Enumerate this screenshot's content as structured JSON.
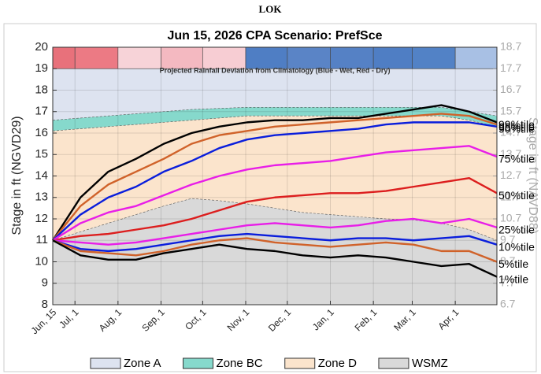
{
  "header": {
    "title": "LOK"
  },
  "chart_data": {
    "type": "line",
    "title": "Jun 15, 2026  CPA Scenario: PrefSce",
    "ylabel": "Stage in ft (NGVD29)",
    "y2label": "Stage in ft (NAVD88)",
    "xlim": [
      0,
      320
    ],
    "xticks": [
      {
        "value": 0,
        "label": "Jun, 15"
      },
      {
        "value": 16,
        "label": "Jul, 1"
      },
      {
        "value": 47,
        "label": "Aug, 1"
      },
      {
        "value": 78,
        "label": "Sep, 1"
      },
      {
        "value": 108,
        "label": "Oct, 1"
      },
      {
        "value": 139,
        "label": "Nov, 1"
      },
      {
        "value": 169,
        "label": "Dec, 1"
      },
      {
        "value": 200,
        "label": "Jan, 1"
      },
      {
        "value": 231,
        "label": "Feb, 1"
      },
      {
        "value": 259,
        "label": "Mar, 1"
      },
      {
        "value": 290,
        "label": "Apr, 1"
      }
    ],
    "ylim": [
      8,
      20
    ],
    "yticks": [
      8,
      9,
      10,
      11,
      12,
      13,
      14,
      15,
      16,
      17,
      18,
      19,
      20
    ],
    "y2lim": [
      6.7,
      18.7
    ],
    "y2ticks": [
      6.7,
      7.7,
      8.7,
      9.7,
      10.7,
      11.7,
      12.7,
      13.7,
      14.7,
      15.7,
      16.7,
      17.7,
      18.7
    ],
    "rainfall": {
      "label": "Projected Rainfall Deviation from Climatology (Blue - Wet, Red - Dry)",
      "colors": [
        "#e8717b",
        "#ec7a84",
        "#f7d3d8",
        "#f4b9c1",
        "#f7cdd3",
        "#4f7ec4",
        "#5a84c6",
        "#5581c5",
        "#4f7ec4",
        "#5282c6",
        "#a8c0e4"
      ]
    },
    "x": [
      0,
      20,
      40,
      60,
      80,
      100,
      120,
      140,
      160,
      180,
      200,
      220,
      240,
      260,
      280,
      300,
      320
    ],
    "zones": [
      {
        "name": "Zone A",
        "color": "#dde3f0",
        "values": [
          19,
          19,
          19,
          19,
          19,
          19,
          19,
          19,
          19,
          19,
          19,
          19,
          19,
          19,
          19,
          19,
          19
        ]
      },
      {
        "name": "Zone BC",
        "color": "#86d9cc",
        "values": [
          16.6,
          16.7,
          16.8,
          16.9,
          17.0,
          17.1,
          17.15,
          17.2,
          17.2,
          17.2,
          17.2,
          17.2,
          17.2,
          17.2,
          17.2,
          17.0,
          16.8
        ]
      },
      {
        "name": "Zone D",
        "color": "#fbe4cc",
        "values": [
          16.1,
          16.2,
          16.3,
          16.4,
          16.5,
          16.6,
          16.7,
          16.8,
          16.8,
          16.8,
          16.8,
          16.8,
          16.8,
          16.8,
          16.8,
          16.6,
          16.3
        ]
      },
      {
        "name": "WSMZ",
        "color": "#d9d9d9",
        "values": [
          11.0,
          11.4,
          11.8,
          12.2,
          12.6,
          12.95,
          12.85,
          12.7,
          12.5,
          12.3,
          12.2,
          12.1,
          12.0,
          11.95,
          11.8,
          11.5,
          11.0
        ]
      }
    ],
    "series": [
      {
        "name": "99%tile",
        "color": "#000000",
        "values": [
          11,
          13.0,
          14.2,
          14.8,
          15.5,
          16.0,
          16.3,
          16.5,
          16.6,
          16.6,
          16.7,
          16.7,
          16.9,
          17.1,
          17.3,
          17.0,
          16.5
        ]
      },
      {
        "name": "95%tile",
        "color": "#d0622a",
        "values": [
          11,
          12.6,
          13.6,
          14.2,
          14.8,
          15.5,
          15.9,
          16.1,
          16.3,
          16.4,
          16.5,
          16.6,
          16.7,
          16.8,
          16.9,
          16.8,
          16.4
        ]
      },
      {
        "name": "90%tile",
        "color": "#0a1edc",
        "values": [
          11,
          12.2,
          13.0,
          13.5,
          14.2,
          14.7,
          15.3,
          15.7,
          15.9,
          16.0,
          16.1,
          16.2,
          16.4,
          16.5,
          16.5,
          16.5,
          16.3
        ]
      },
      {
        "name": "75%tile",
        "color": "#e81ee8",
        "values": [
          11,
          11.8,
          12.3,
          12.6,
          13.1,
          13.6,
          14.0,
          14.3,
          14.5,
          14.6,
          14.7,
          14.9,
          15.1,
          15.2,
          15.3,
          15.4,
          14.9
        ]
      },
      {
        "name": "50%tile",
        "color": "#dc1e1e",
        "values": [
          11,
          11.2,
          11.3,
          11.5,
          11.7,
          12.0,
          12.4,
          12.8,
          13.0,
          13.1,
          13.2,
          13.2,
          13.3,
          13.5,
          13.7,
          13.9,
          13.2
        ]
      },
      {
        "name": "25%tile",
        "color": "#e81ee8",
        "values": [
          11,
          10.9,
          10.8,
          10.9,
          11.1,
          11.3,
          11.5,
          11.7,
          11.8,
          11.7,
          11.6,
          11.7,
          11.9,
          12.0,
          11.8,
          12.0,
          11.6
        ]
      },
      {
        "name": "10%tile",
        "color": "#0a1edc",
        "values": [
          11,
          10.6,
          10.5,
          10.6,
          10.8,
          11.0,
          11.2,
          11.3,
          11.2,
          11.1,
          11.0,
          11.1,
          11.1,
          11.0,
          11.1,
          11.2,
          10.8
        ]
      },
      {
        "name": "5%tile",
        "color": "#d0622a",
        "values": [
          11,
          10.5,
          10.4,
          10.3,
          10.5,
          10.8,
          11.0,
          11.1,
          10.9,
          10.8,
          10.7,
          10.8,
          10.9,
          10.8,
          10.5,
          10.5,
          10.0
        ]
      },
      {
        "name": "1%tile",
        "color": "#000000",
        "values": [
          11,
          10.3,
          10.1,
          10.1,
          10.4,
          10.6,
          10.8,
          10.6,
          10.5,
          10.3,
          10.2,
          10.3,
          10.2,
          10.0,
          9.8,
          9.9,
          9.3
        ]
      }
    ]
  }
}
